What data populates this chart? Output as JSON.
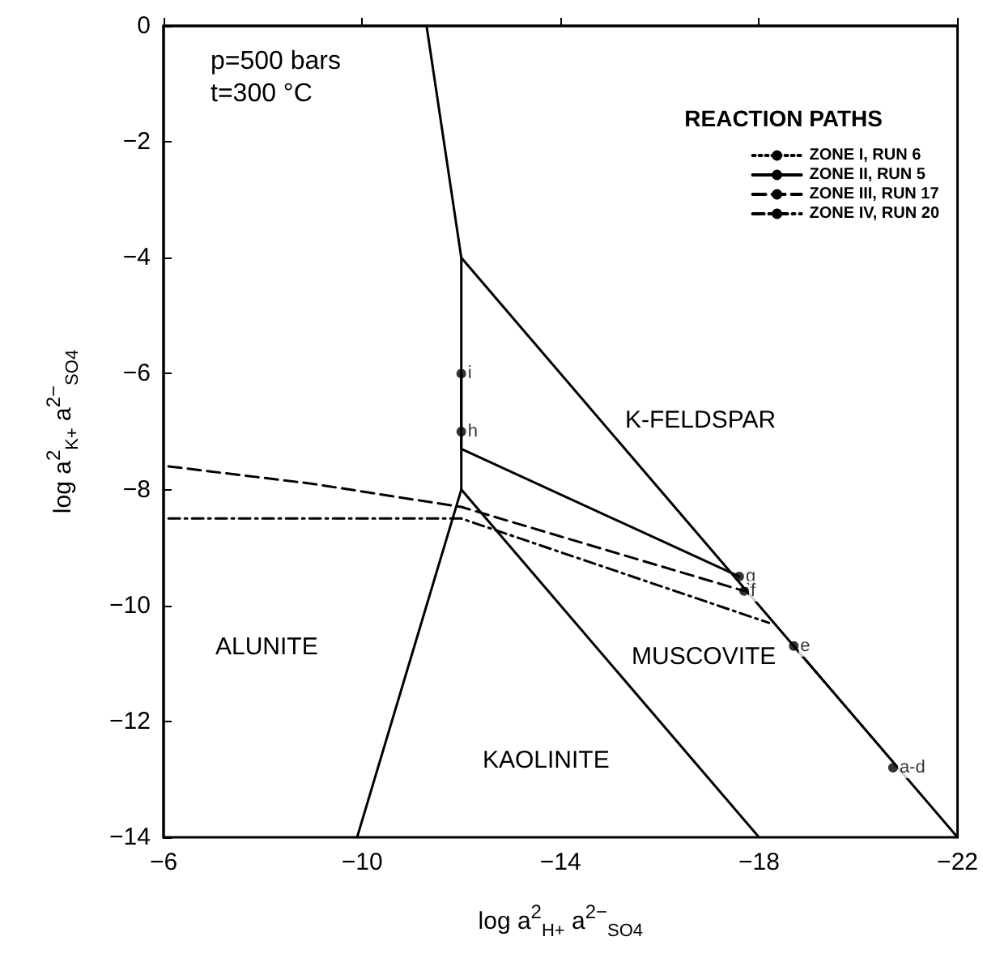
{
  "chart_data": {
    "type": "line",
    "xlabel": "log a$^{2}$$_{H+}$ a$^{2−}$$_{SO4}$",
    "ylabel": "log a$^{2}$$_{K+}$ a$^{2−}$$_{SO4}$",
    "legend_title": "REACTION PATHS",
    "xlim": [
      -6,
      -22
    ],
    "xticks": [
      -6,
      -10,
      -14,
      -18,
      -22
    ],
    "ylim": [
      -14,
      0
    ],
    "yticks": [
      0,
      -2,
      -4,
      -6,
      -8,
      -10,
      -12,
      -14
    ],
    "grid": false,
    "legend": "top right",
    "marker": "none",
    "series": [
      {
        "name": "ZONE I, RUN 6",
        "color": "#000000",
        "line_style": "dotted",
        "x": [
          -18.7,
          -20.7
        ],
        "values": [
          -10.7,
          -12.7
        ]
      },
      {
        "name": "ZONE II, RUN 5",
        "color": "#000000",
        "line_style": "solid",
        "x": [
          -12,
          -12,
          -12,
          -17.6
        ],
        "values": [
          -6,
          -7,
          -7.3,
          -9.5
        ]
      },
      {
        "name": "ZONE III, RUN 17",
        "color": "#000000",
        "line_style": "dashed",
        "x": [
          -6.1,
          -9,
          -12,
          -17.7
        ],
        "values": [
          -7.6,
          -7.9,
          -8.3,
          -9.75
        ]
      },
      {
        "name": "ZONE IV, RUN 20",
        "color": "#000000",
        "line_style": "dashdot",
        "x": [
          -6.1,
          -12,
          -18.2
        ],
        "values": [
          -8.5,
          -8.5,
          -10.3
        ]
      },
      {
        "color": "#000000",
        "line_style": "solid",
        "x": [
          -11.3,
          -12,
          -12,
          -9.9
        ],
        "values": [
          0,
          -4,
          -8,
          -14
        ]
      },
      {
        "color": "#000000",
        "line_style": "solid",
        "x": [
          -12,
          -22
        ],
        "values": [
          -4,
          -14
        ]
      },
      {
        "color": "#000000",
        "line_style": "solid",
        "x": [
          -12,
          -18
        ],
        "values": [
          -8,
          -14
        ]
      },
      {
        "type": "scatter",
        "marker": "circle",
        "color": "#000000",
        "x": [
          -12,
          -12,
          -17.6,
          -17.7,
          -18.7,
          -20.7
        ],
        "values": [
          -6,
          -7,
          -9.5,
          -9.75,
          -10.7,
          -12.8
        ]
      }
    ],
    "annotations": [
      "p=500 bars",
      "t=300 °C",
      {
        "text": "i",
        "x": -12,
        "y": -6
      },
      {
        "text": "h",
        "x": -12,
        "y": -7
      },
      {
        "text": "g",
        "x": -17.6,
        "y": -9.5
      },
      {
        "text": "f",
        "x": -17.7,
        "y": -9.75
      },
      {
        "text": "e",
        "x": -18.7,
        "y": -10.7
      },
      {
        "text": "a-d",
        "x": -20.7,
        "y": -12.8
      },
      "K-FELDSPAR",
      "ALUNITE",
      "KAOLINITE",
      "MUSCOVITE"
    ]
  }
}
